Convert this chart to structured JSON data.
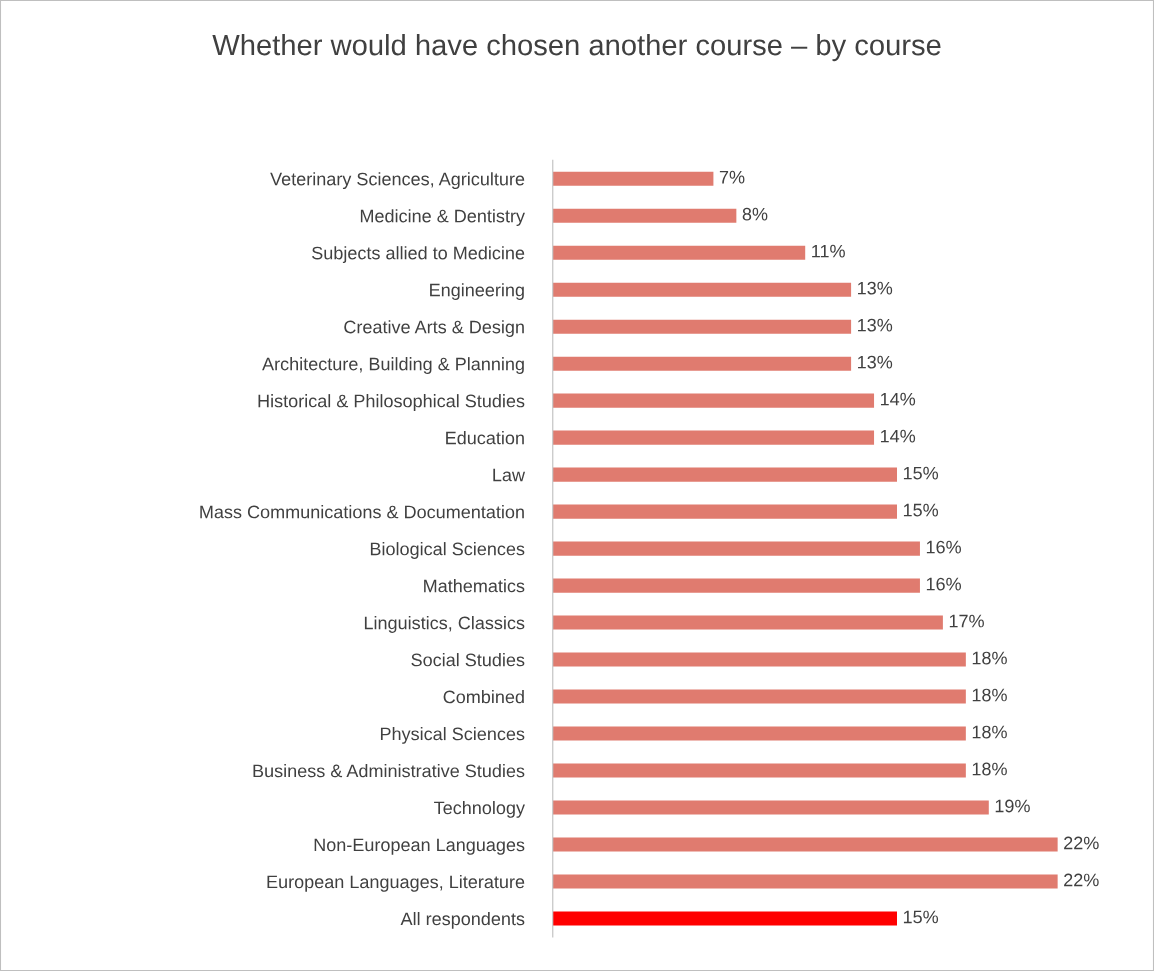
{
  "chart_data": {
    "type": "bar",
    "orientation": "horizontal",
    "title": "Whether would have chosen another course – by course",
    "categories": [
      "Veterinary Sciences, Agriculture",
      "Medicine & Dentistry",
      "Subjects allied to Medicine",
      "Engineering",
      "Creative Arts & Design",
      "Architecture, Building & Planning",
      "Historical & Philosophical Studies",
      "Education",
      "Law",
      "Mass Communications & Documentation",
      "Biological Sciences",
      "Mathematics",
      "Linguistics, Classics",
      "Social Studies",
      "Combined",
      "Physical Sciences",
      "Business & Administrative Studies",
      "Technology",
      "Non-European Languages",
      "European Languages, Literature",
      "All respondents"
    ],
    "values": [
      7,
      8,
      11,
      13,
      13,
      13,
      14,
      14,
      15,
      15,
      16,
      16,
      17,
      18,
      18,
      18,
      18,
      19,
      22,
      22,
      15
    ],
    "value_labels": [
      "7%",
      "8%",
      "11%",
      "13%",
      "13%",
      "13%",
      "14%",
      "14%",
      "15%",
      "15%",
      "16%",
      "16%",
      "17%",
      "18%",
      "18%",
      "18%",
      "18%",
      "19%",
      "22%",
      "22%",
      "15%"
    ],
    "colors": [
      "#e07b6f",
      "#e07b6f",
      "#e07b6f",
      "#e07b6f",
      "#e07b6f",
      "#e07b6f",
      "#e07b6f",
      "#e07b6f",
      "#e07b6f",
      "#e07b6f",
      "#e07b6f",
      "#e07b6f",
      "#e07b6f",
      "#e07b6f",
      "#e07b6f",
      "#e07b6f",
      "#e07b6f",
      "#e07b6f",
      "#e07b6f",
      "#e07b6f",
      "#ff0000"
    ],
    "grid": false,
    "legend": false
  }
}
